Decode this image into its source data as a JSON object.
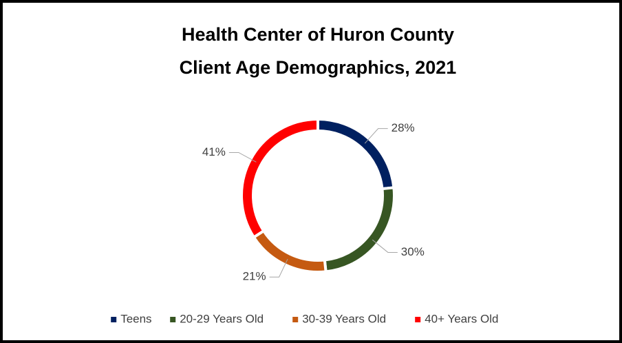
{
  "chart_data": {
    "type": "donut",
    "title": [
      "Health Center of Huron County",
      "Client Age Demographics, 2021"
    ],
    "categories": [
      "Teens",
      "20-29 Years Old",
      "30-39 Years Old",
      "40+ Years Old"
    ],
    "values": [
      28,
      30,
      21,
      41
    ],
    "value_labels": [
      "28%",
      "30%",
      "21%",
      "41%"
    ],
    "colors": [
      "#002060",
      "#375623",
      "#c55a11",
      "#ff0000"
    ],
    "legend": "bottom"
  }
}
